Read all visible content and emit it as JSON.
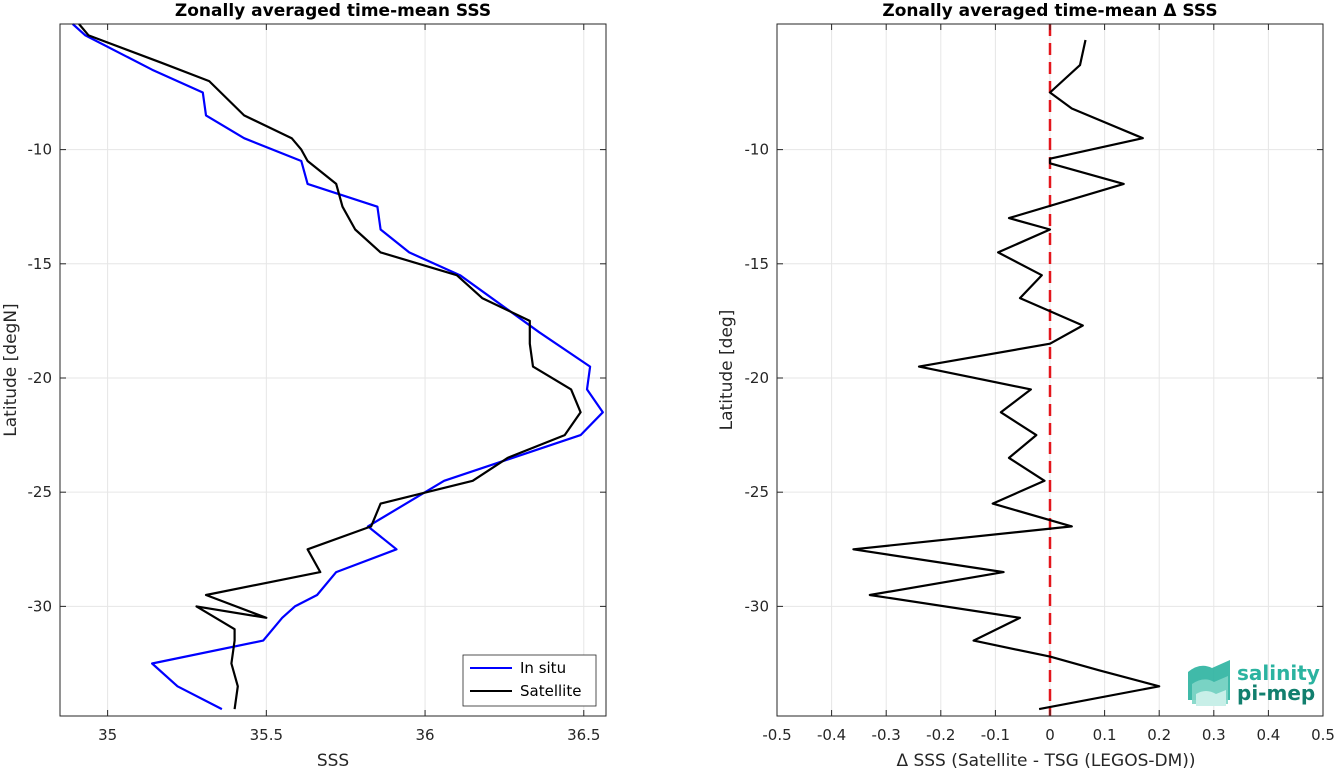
{
  "chart_data": [
    {
      "type": "line",
      "title": "Zonally averaged time-mean SSS",
      "xlabel": "SSS",
      "ylabel": "Latitude [degN]",
      "xlim": [
        34.85,
        36.57
      ],
      "ylim": [
        -34.8,
        -4.5
      ],
      "xticks": [
        "35",
        "35.5",
        "36",
        "36.5"
      ],
      "yticks": [
        "-10",
        "-15",
        "-20",
        "-25",
        "-30"
      ],
      "grid": true,
      "legend_position": "bottom-right",
      "series": [
        {
          "name": "In situ",
          "color": "#0000ff",
          "x": [
            34.89,
            34.93,
            35.14,
            35.3,
            35.31,
            35.43,
            35.61,
            35.63,
            35.85,
            35.86,
            35.95,
            36.11,
            36.36,
            36.52,
            36.51,
            36.56,
            36.49,
            36.06,
            35.82,
            35.91,
            35.72,
            35.66,
            35.59,
            35.55,
            35.49,
            35.14,
            35.22,
            35.36
          ],
          "y": [
            -4.5,
            -5.0,
            -6.5,
            -7.5,
            -8.5,
            -9.5,
            -10.5,
            -11.5,
            -12.5,
            -13.5,
            -14.5,
            -15.5,
            -18.0,
            -19.5,
            -20.5,
            -21.5,
            -22.5,
            -24.5,
            -26.5,
            -27.5,
            -28.5,
            -29.5,
            -30.0,
            -30.5,
            -31.5,
            -32.5,
            -33.5,
            -34.5
          ]
        },
        {
          "name": "Satellite",
          "color": "#000000",
          "x": [
            34.91,
            34.94,
            35.17,
            35.32,
            35.43,
            35.58,
            35.61,
            35.63,
            35.72,
            35.74,
            35.78,
            35.86,
            36.1,
            36.18,
            36.33,
            36.33,
            36.34,
            36.46,
            36.49,
            36.44,
            36.26,
            36.15,
            35.86,
            35.83,
            35.63,
            35.67,
            35.31,
            35.5,
            35.28,
            35.4,
            35.4,
            35.39,
            35.41,
            35.4
          ],
          "y": [
            -4.5,
            -5.0,
            -6.2,
            -7.0,
            -8.5,
            -9.5,
            -10.0,
            -10.5,
            -11.5,
            -12.5,
            -13.5,
            -14.5,
            -15.5,
            -16.5,
            -17.5,
            -18.5,
            -19.5,
            -20.5,
            -21.5,
            -22.5,
            -23.5,
            -24.5,
            -25.5,
            -26.5,
            -27.5,
            -28.5,
            -29.5,
            -30.5,
            -30.0,
            -31.0,
            -31.5,
            -32.5,
            -33.5,
            -34.5
          ]
        }
      ]
    },
    {
      "type": "line",
      "title": "Zonally averaged time-mean Δ SSS",
      "xlabel": "Δ SSS (Satellite - TSG (LEGOS-DM))",
      "ylabel": "Latitude [deg]",
      "xlim": [
        -0.5,
        0.5
      ],
      "ylim": [
        -34.8,
        -4.5
      ],
      "xticks": [
        "-0.5",
        "-0.4",
        "-0.3",
        "-0.2",
        "-0.1",
        "0",
        "0.1",
        "0.2",
        "0.3",
        "0.4",
        "0.5"
      ],
      "yticks": [
        "-10",
        "-15",
        "-20",
        "-25",
        "-30"
      ],
      "grid": true,
      "reference_line": {
        "x": 0,
        "color": "#e3161c",
        "style": "dashed"
      },
      "series": [
        {
          "name": "",
          "color": "#000000",
          "x": [
            0.065,
            0.055,
            0.0,
            0.04,
            0.17,
            0.0,
            0.0,
            0.135,
            -0.075,
            0.0,
            -0.095,
            -0.015,
            -0.055,
            0.06,
            0.0,
            -0.24,
            -0.035,
            -0.09,
            -0.025,
            -0.075,
            -0.01,
            -0.105,
            0.04,
            -0.36,
            -0.085,
            -0.33,
            -0.055,
            -0.14,
            0.0,
            0.09,
            0.2,
            -0.02
          ],
          "y": [
            -5.2,
            -6.3,
            -7.5,
            -8.2,
            -9.5,
            -10.4,
            -10.6,
            -11.5,
            -13.0,
            -13.5,
            -14.5,
            -15.5,
            -16.5,
            -17.7,
            -18.5,
            -19.5,
            -20.5,
            -21.5,
            -22.5,
            -23.5,
            -24.5,
            -25.5,
            -26.5,
            -27.5,
            -28.5,
            -29.5,
            -30.5,
            -31.5,
            -32.2,
            -32.8,
            -33.5,
            -34.5
          ]
        }
      ]
    }
  ],
  "legend": {
    "items": [
      "In situ",
      "Satellite"
    ]
  },
  "logo": {
    "line1": "salinity",
    "line2": "pi-mep"
  }
}
